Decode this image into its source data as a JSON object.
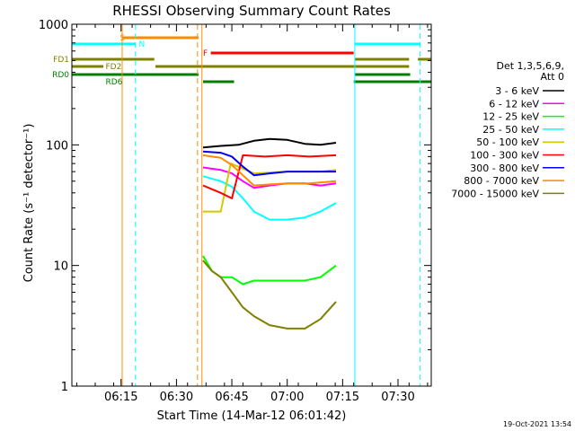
{
  "chart_data": {
    "type": "line",
    "title": "RHESSI Observing Summary Count Rates",
    "xlabel": "Start Time (14-Mar-12 06:01:42)",
    "ylabel": "Count Rate (s⁻¹ detector⁻¹)",
    "yscale": "log",
    "xlim": [
      6.028,
      7.65
    ],
    "ylim": [
      1,
      1000
    ],
    "x_ticks": [
      {
        "value": 6.25,
        "label": "06:15"
      },
      {
        "value": 6.5,
        "label": "06:30"
      },
      {
        "value": 6.75,
        "label": "06:45"
      },
      {
        "value": 7.0,
        "label": "07:00"
      },
      {
        "value": 7.25,
        "label": "07:15"
      },
      {
        "value": 7.5,
        "label": "07:30"
      }
    ],
    "y_ticks": [
      {
        "value": 1,
        "label": "1"
      },
      {
        "value": 10,
        "label": "10"
      },
      {
        "value": 100,
        "label": "100"
      },
      {
        "value": 1000,
        "label": "1000"
      }
    ],
    "legend": {
      "header_lines": [
        "Det 1,3,5,6,9,",
        "Att 0"
      ],
      "entries": [
        {
          "label": "3 - 6 keV",
          "color": "#000000"
        },
        {
          "label": "6 - 12 keV",
          "color": "#ff00ff"
        },
        {
          "label": "12 - 25 keV",
          "color": "#00ff00"
        },
        {
          "label": "25 - 50 keV",
          "color": "#00ffff"
        },
        {
          "label": "50 - 100 keV",
          "color": "#d4c800"
        },
        {
          "label": "100 - 300 keV",
          "color": "#ff0000"
        },
        {
          "label": "300 - 800 keV",
          "color": "#0000ff"
        },
        {
          "label": "800 - 7000 keV",
          "color": "#ff8c00"
        },
        {
          "label": "7000 - 15000 keV",
          "color": "#808000"
        }
      ]
    },
    "series": [
      {
        "name": "3 - 6 keV",
        "color": "#000000",
        "points": [
          [
            6.62,
            95
          ],
          [
            6.7,
            98
          ],
          [
            6.78,
            100
          ],
          [
            6.85,
            108
          ],
          [
            6.92,
            112
          ],
          [
            7.0,
            110
          ],
          [
            7.08,
            102
          ],
          [
            7.15,
            100
          ],
          [
            7.22,
            104
          ]
        ]
      },
      {
        "name": "6 - 12 keV",
        "color": "#ff00ff",
        "points": [
          [
            6.62,
            65
          ],
          [
            6.7,
            62
          ],
          [
            6.75,
            58
          ],
          [
            6.8,
            50
          ],
          [
            6.85,
            44
          ],
          [
            6.92,
            46
          ],
          [
            7.0,
            48
          ],
          [
            7.08,
            48
          ],
          [
            7.15,
            46
          ],
          [
            7.22,
            48
          ]
        ]
      },
      {
        "name": "12 - 25 keV",
        "color": "#00ff00",
        "points": [
          [
            6.62,
            12
          ],
          [
            6.66,
            9
          ],
          [
            6.7,
            8
          ],
          [
            6.75,
            8
          ],
          [
            6.8,
            7
          ],
          [
            6.85,
            7.5
          ],
          [
            6.92,
            7.5
          ],
          [
            7.0,
            7.5
          ],
          [
            7.08,
            7.5
          ],
          [
            7.15,
            8
          ],
          [
            7.22,
            10
          ]
        ]
      },
      {
        "name": "25 - 50 keV",
        "color": "#00ffff",
        "points": [
          [
            6.62,
            55
          ],
          [
            6.7,
            50
          ],
          [
            6.75,
            45
          ],
          [
            6.8,
            36
          ],
          [
            6.85,
            28
          ],
          [
            6.92,
            24
          ],
          [
            7.0,
            24
          ],
          [
            7.08,
            25
          ],
          [
            7.15,
            28
          ],
          [
            7.22,
            33
          ]
        ]
      },
      {
        "name": "50 - 100 keV",
        "color": "#d4c800",
        "points": [
          [
            6.62,
            28
          ],
          [
            6.7,
            28
          ],
          [
            6.745,
            70
          ],
          [
            6.85,
            58
          ],
          [
            7.0,
            60
          ],
          [
            7.15,
            60
          ],
          [
            7.22,
            62
          ]
        ]
      },
      {
        "name": "100 - 300 keV",
        "color": "#ff0000",
        "points": [
          [
            6.62,
            46
          ],
          [
            6.7,
            40
          ],
          [
            6.75,
            36
          ],
          [
            6.8,
            82
          ],
          [
            6.9,
            80
          ],
          [
            7.0,
            82
          ],
          [
            7.1,
            80
          ],
          [
            7.22,
            82
          ]
        ]
      },
      {
        "name": "300 - 800 keV",
        "color": "#0000ff",
        "points": [
          [
            6.62,
            88
          ],
          [
            6.7,
            86
          ],
          [
            6.75,
            80
          ],
          [
            6.8,
            66
          ],
          [
            6.85,
            56
          ],
          [
            6.92,
            58
          ],
          [
            7.0,
            60
          ],
          [
            7.1,
            60
          ],
          [
            7.22,
            60
          ]
        ]
      },
      {
        "name": "800 - 7000 keV",
        "color": "#ff8c00",
        "points": [
          [
            6.62,
            82
          ],
          [
            6.7,
            78
          ],
          [
            6.75,
            68
          ],
          [
            6.8,
            56
          ],
          [
            6.85,
            46
          ],
          [
            6.92,
            47
          ],
          [
            7.0,
            48
          ],
          [
            7.1,
            48
          ],
          [
            7.22,
            50
          ]
        ]
      },
      {
        "name": "7000 - 15000 keV",
        "color": "#808000",
        "points": [
          [
            6.62,
            11
          ],
          [
            6.66,
            9
          ],
          [
            6.7,
            8
          ],
          [
            6.75,
            6
          ],
          [
            6.8,
            4.5
          ],
          [
            6.85,
            3.8
          ],
          [
            6.92,
            3.2
          ],
          [
            7.0,
            3.0
          ],
          [
            7.08,
            3.0
          ],
          [
            7.15,
            3.6
          ],
          [
            7.22,
            5
          ]
        ]
      }
    ],
    "vertical_markers": [
      {
        "x": 6.255,
        "color": "#ff8c00",
        "style": "solid"
      },
      {
        "x": 6.315,
        "color": "#00ffff",
        "style": "dashed"
      },
      {
        "x": 6.595,
        "color": "#ff8c00",
        "style": "dashed"
      },
      {
        "x": 6.615,
        "color": "#ff8c00",
        "style": "solid"
      },
      {
        "x": 7.305,
        "color": "#00ffff",
        "style": "solid"
      },
      {
        "x": 7.6,
        "color": "#00ffff",
        "style": "dashed"
      }
    ],
    "flag_labels": [
      {
        "label": "S",
        "color": "#ff8c00",
        "x": 6.245
      },
      {
        "label": "N",
        "color": "#00ffff",
        "x": 6.33
      },
      {
        "label": "F",
        "color": "#ff0000",
        "x": 6.62
      },
      {
        "label": "FD1",
        "color": "#808000"
      },
      {
        "label": "FD2",
        "color": "#808000",
        "x": 6.18
      },
      {
        "label": "RD0",
        "color": "#008000"
      },
      {
        "label": "RD6",
        "color": "#008000",
        "x": 6.18
      }
    ],
    "flag_segments": [
      {
        "flag": "S",
        "color": "#ff8c00",
        "x1": 6.255,
        "x2": 6.6
      },
      {
        "flag": "N",
        "color": "#00ffff",
        "x1": 6.028,
        "x2": 6.315
      },
      {
        "flag": "N",
        "color": "#00ffff",
        "x1": 7.305,
        "x2": 7.6
      },
      {
        "flag": "F",
        "color": "#ff0000",
        "x1": 6.655,
        "x2": 7.3
      },
      {
        "flag": "FD1",
        "color": "#808000",
        "x1": 6.028,
        "x2": 6.4
      },
      {
        "flag": "FD1",
        "color": "#808000",
        "x1": 7.305,
        "x2": 7.55
      },
      {
        "flag": "FD1",
        "color": "#808000",
        "x1": 7.59,
        "x2": 7.65
      },
      {
        "flag": "FD2",
        "color": "#808000",
        "x1": 6.028,
        "x2": 6.17
      },
      {
        "flag": "FD2",
        "color": "#808000",
        "x1": 6.405,
        "x2": 7.55
      },
      {
        "flag": "RD0",
        "color": "#008000",
        "x1": 6.028,
        "x2": 6.6
      },
      {
        "flag": "RD0",
        "color": "#008000",
        "x1": 7.305,
        "x2": 7.555
      },
      {
        "flag": "RD6",
        "color": "#008000",
        "x1": 6.62,
        "x2": 6.76
      },
      {
        "flag": "RD6",
        "color": "#008000",
        "x1": 7.3,
        "x2": 7.65
      }
    ],
    "footer_date": "19-Oct-2021 13:54"
  }
}
